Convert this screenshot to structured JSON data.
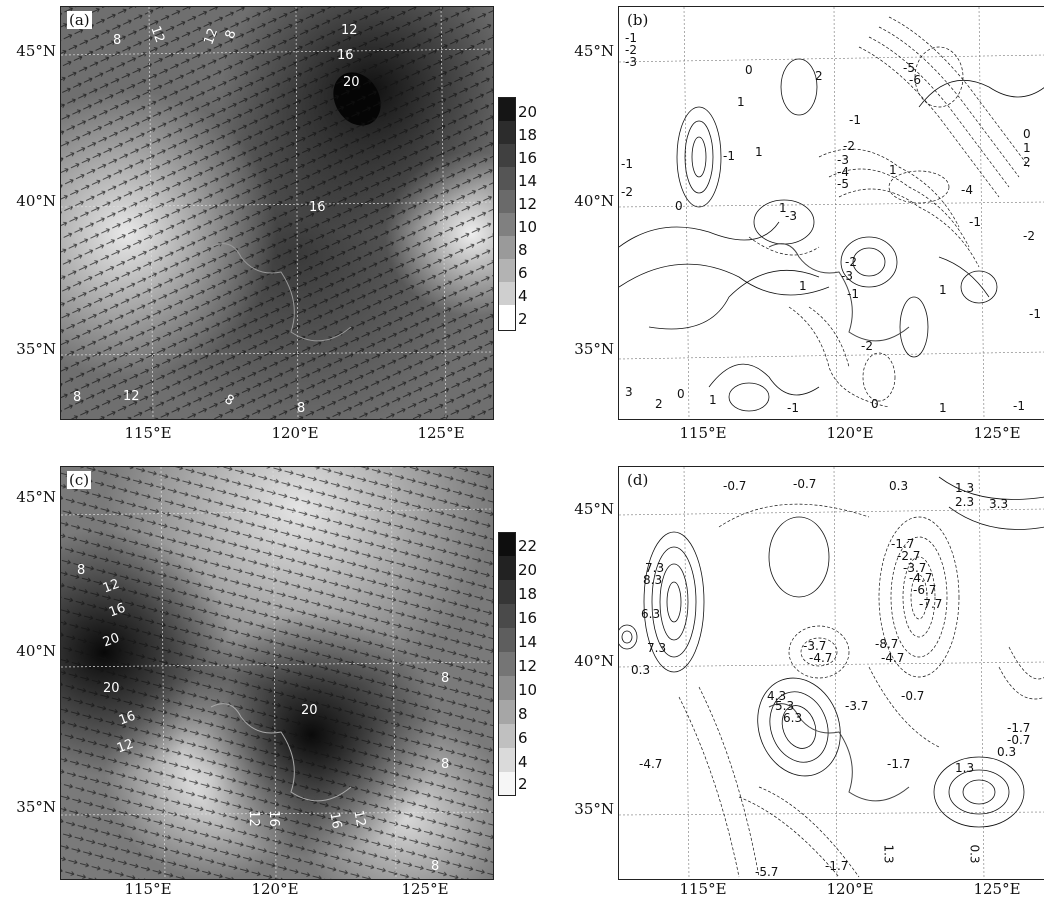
{
  "panels": [
    {
      "id": "a",
      "label": "(a)",
      "colorbar": [
        "20",
        "18",
        "16",
        "14",
        "12",
        "10",
        "8",
        "6",
        "4",
        "2"
      ],
      "contour_labels": [
        "12",
        "16",
        "20",
        "16",
        "12",
        "12",
        "8",
        "8",
        "8",
        "12",
        "8",
        "8"
      ]
    },
    {
      "id": "b",
      "label": "(b)",
      "contour_labels": [
        "-1",
        "-2",
        "-3",
        "0",
        "2",
        "1",
        "-5",
        "-6",
        "-1",
        "-2",
        "-3",
        "-4",
        "-5",
        "0",
        "1",
        "2",
        "-1",
        "1",
        "0",
        "-2",
        "-1",
        "1",
        "-4",
        "1",
        "-3",
        "-2",
        "-1",
        "-2",
        "-3",
        "1",
        "-1",
        "1",
        "-1",
        "-2",
        "0",
        "3",
        "-1",
        "2",
        "1",
        "1",
        "0",
        "-1"
      ]
    },
    {
      "id": "c",
      "label": "(c)",
      "colorbar": [
        "22",
        "20",
        "18",
        "16",
        "14",
        "12",
        "10",
        "8",
        "6",
        "4",
        "2"
      ],
      "contour_labels": [
        "8",
        "12",
        "16",
        "20",
        "20",
        "16",
        "12",
        "20",
        "12",
        "16",
        "16",
        "12",
        "8",
        "8",
        "8"
      ]
    },
    {
      "id": "d",
      "label": "(d)",
      "contour_labels": [
        "-0.7",
        "-0.7",
        "0.3",
        "1.3",
        "2.3",
        "3.3",
        "7.3",
        "8.3",
        "6.3",
        "7.3",
        "0.3",
        "-1.7",
        "-2.7",
        "-3.7",
        "-4.7",
        "-6.7",
        "-7.7",
        "-3.7",
        "-4.7",
        "-8.7",
        "-4.7",
        "4.3",
        "5.3",
        "6.3",
        "-3.7",
        "-0.7",
        "-4.7",
        "-1.7",
        "1.3",
        "1.3",
        "0.3",
        "-1.7",
        "-0.7",
        "0.3",
        "-5.7",
        "-1.7"
      ]
    }
  ],
  "axes": {
    "lat_labels": [
      "45°N",
      "40°N",
      "35°N"
    ],
    "lon_labels": [
      "115°E",
      "120°E",
      "125°E"
    ]
  }
}
